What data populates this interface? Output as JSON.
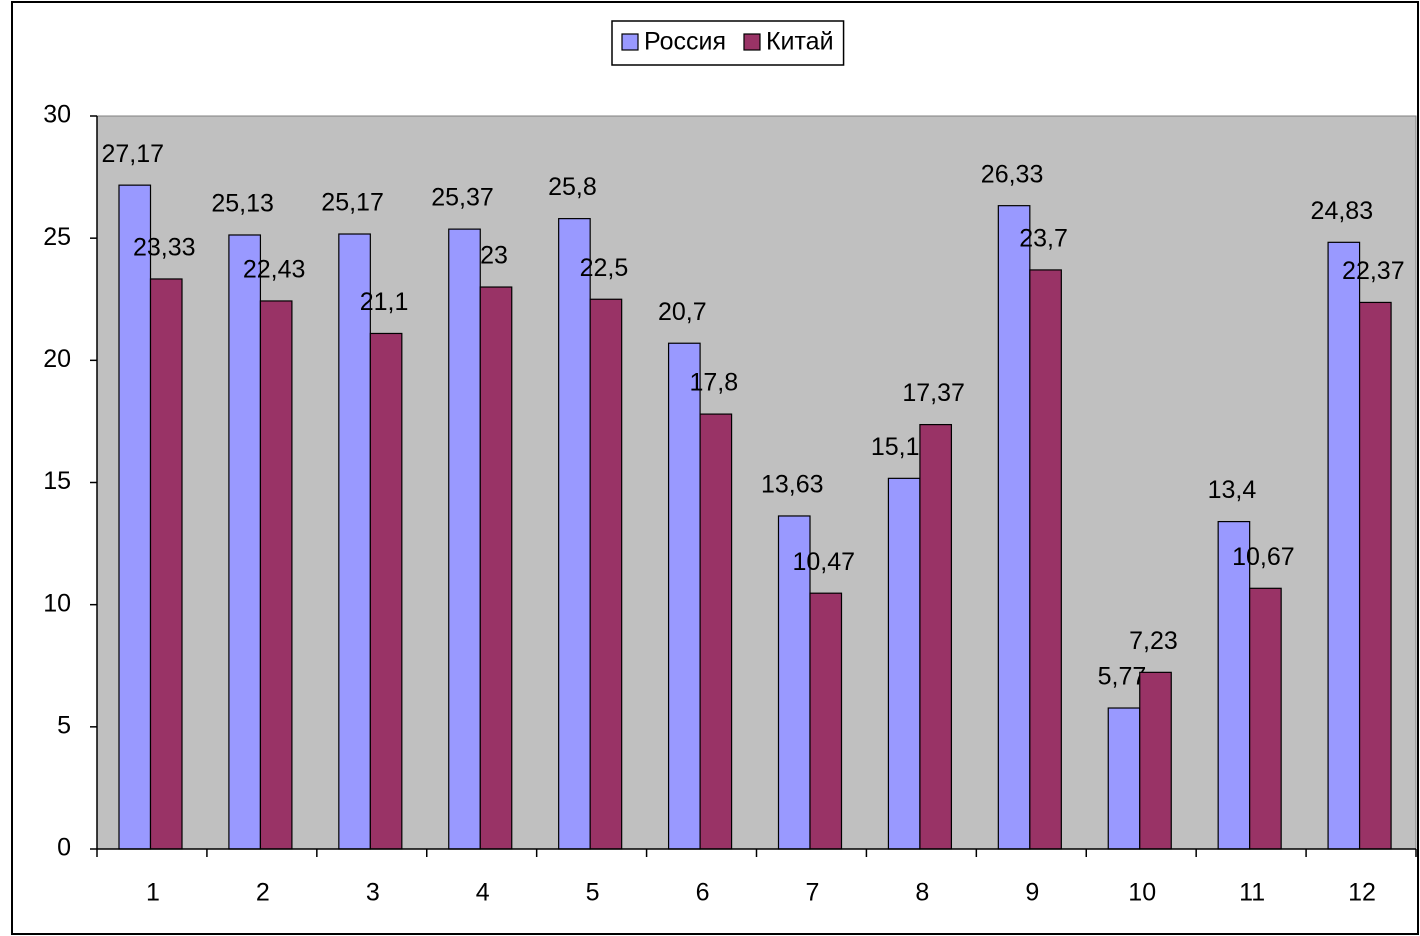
{
  "chart_data": {
    "type": "bar",
    "categories": [
      "1",
      "2",
      "3",
      "4",
      "5",
      "6",
      "7",
      "8",
      "9",
      "10",
      "11",
      "12"
    ],
    "series": [
      {
        "name": "Россия",
        "color": "#9999ff",
        "values": [
          27.17,
          25.13,
          25.17,
          25.37,
          25.8,
          20.7,
          13.63,
          15.17,
          26.33,
          5.77,
          13.4,
          24.83
        ],
        "value_labels": [
          "27,17",
          "25,13",
          "25,17",
          "25,37",
          "25,8",
          "20,7",
          "13,63",
          "15,17",
          "26,33",
          "5,77",
          "13,4",
          "24,83"
        ]
      },
      {
        "name": "Китай",
        "color": "#993366",
        "values": [
          23.33,
          22.43,
          21.1,
          23,
          22.5,
          17.8,
          10.47,
          17.37,
          23.7,
          7.23,
          10.67,
          22.37
        ],
        "value_labels": [
          "23,33",
          "22,43",
          "21,1",
          "23",
          "22,5",
          "17,8",
          "10,47",
          "17,37",
          "23,7",
          "7,23",
          "10,67",
          "22,37"
        ]
      }
    ],
    "ylim": [
      0,
      30
    ],
    "yticks": [
      0,
      5,
      10,
      15,
      20,
      25,
      30
    ],
    "grid": false,
    "plot_background": "#c0c0c0",
    "legend": "top"
  }
}
